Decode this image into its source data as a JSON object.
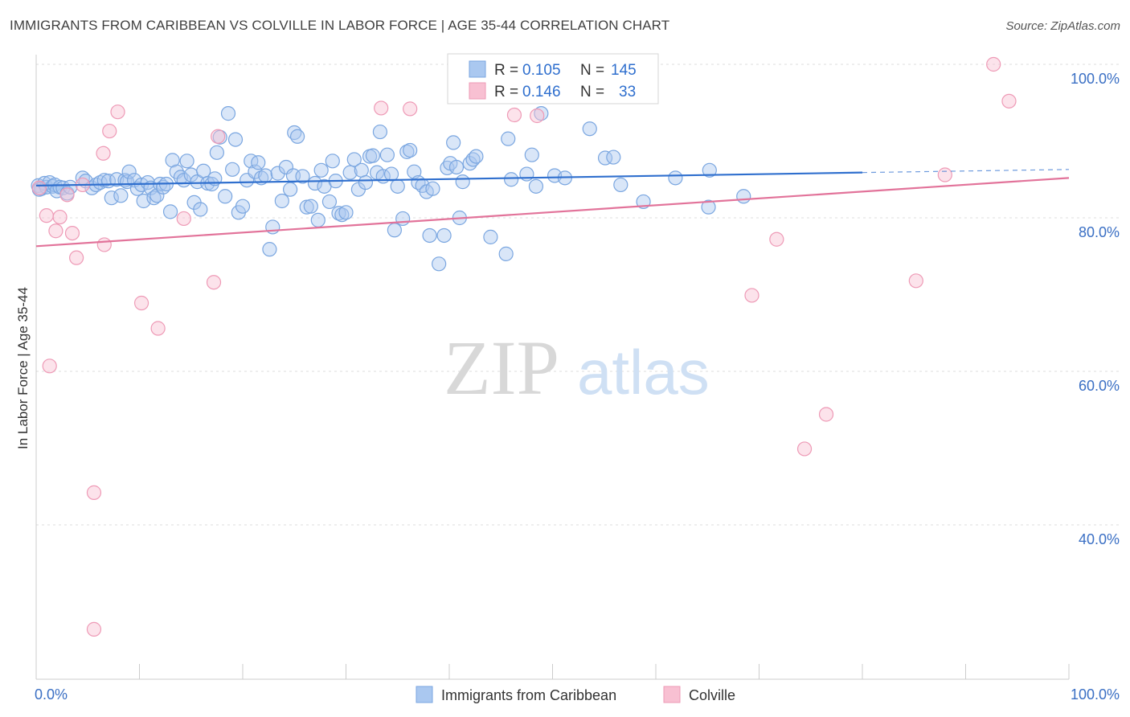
{
  "header": {
    "title": "IMMIGRANTS FROM CARIBBEAN VS COLVILLE IN LABOR FORCE | AGE 35-44 CORRELATION CHART",
    "source": "Source: ZipAtlas.com"
  },
  "watermark": {
    "zip": "ZIP",
    "atlas": "atlas"
  },
  "legend_top": {
    "rows": [
      {
        "r_label": "R =",
        "r_value": "0.105",
        "n_label": "N =",
        "n_value": "145"
      },
      {
        "r_label": "R =",
        "r_value": "0.146",
        "n_label": "N =",
        "n_value": "33"
      }
    ]
  },
  "legend_bottom": {
    "items": [
      "Immigrants from Caribbean",
      "Colville"
    ]
  },
  "colors": {
    "blue_fill": "#aac8f0",
    "blue_stroke": "#7aa6e0",
    "blue_line": "#2f6fce",
    "pink_fill": "#f8c0d2",
    "pink_stroke": "#ee9ab6",
    "pink_line": "#e2739a",
    "tick_text": "#3a6fc4",
    "grid": "#dddddd"
  },
  "chart_data": {
    "type": "scatter",
    "title": "IMMIGRANTS FROM CARIBBEAN VS COLVILLE IN LABOR FORCE | AGE 35-44 CORRELATION CHART",
    "xlabel": "",
    "ylabel": "In Labor Force | Age 35-44",
    "xlim": [
      0,
      100
    ],
    "ylim": [
      20,
      102
    ],
    "x_tick_labels": [
      "0.0%",
      "100.0%"
    ],
    "y_ticks": [
      40,
      60,
      80,
      100
    ],
    "y_tick_labels": [
      "40.0%",
      "60.0%",
      "80.0%",
      "100.0%"
    ],
    "grid": true,
    "legend_position": "top-center",
    "series": [
      {
        "name": "Immigrants from Caribbean",
        "R": 0.105,
        "N": 145,
        "trend": {
          "x0": 0,
          "y0": 84.2,
          "x1": 80,
          "y1": 85.9,
          "dashed_to_x": 100,
          "dashed_to_y": 86.3
        },
        "points": [
          [
            0.2,
            84.2
          ],
          [
            0.5,
            83.8
          ],
          [
            0.8,
            84.5
          ],
          [
            1.0,
            84.0
          ],
          [
            1.3,
            84.6
          ],
          [
            1.6,
            84.1
          ],
          [
            1.8,
            84.3
          ],
          [
            2.0,
            83.5
          ],
          [
            2.3,
            84.0
          ],
          [
            2.6,
            83.9
          ],
          [
            3.0,
            83.2
          ],
          [
            3.3,
            84.0
          ],
          [
            4.5,
            85.2
          ],
          [
            4.8,
            84.8
          ],
          [
            5.4,
            83.9
          ],
          [
            5.8,
            84.3
          ],
          [
            6.2,
            84.6
          ],
          [
            6.6,
            84.9
          ],
          [
            7.0,
            84.8
          ],
          [
            7.3,
            82.6
          ],
          [
            7.8,
            85.0
          ],
          [
            8.2,
            82.9
          ],
          [
            8.6,
            84.9
          ],
          [
            8.8,
            84.7
          ],
          [
            9.0,
            86.0
          ],
          [
            9.5,
            84.9
          ],
          [
            9.8,
            83.8
          ],
          [
            10.2,
            84.3
          ],
          [
            10.4,
            82.2
          ],
          [
            10.8,
            84.6
          ],
          [
            11.1,
            83.9
          ],
          [
            11.4,
            82.6
          ],
          [
            11.7,
            82.9
          ],
          [
            12.0,
            84.4
          ],
          [
            12.3,
            84.0
          ],
          [
            12.6,
            84.4
          ],
          [
            13.0,
            80.8
          ],
          [
            13.2,
            87.5
          ],
          [
            13.6,
            86.0
          ],
          [
            14.0,
            85.3
          ],
          [
            14.3,
            84.9
          ],
          [
            14.6,
            87.4
          ],
          [
            15.0,
            85.6
          ],
          [
            15.3,
            82.0
          ],
          [
            15.6,
            84.7
          ],
          [
            15.9,
            81.1
          ],
          [
            16.2,
            86.1
          ],
          [
            16.6,
            84.5
          ],
          [
            17.0,
            84.4
          ],
          [
            17.3,
            85.1
          ],
          [
            17.5,
            88.5
          ],
          [
            17.8,
            90.5
          ],
          [
            18.3,
            82.8
          ],
          [
            18.6,
            93.6
          ],
          [
            19.0,
            86.3
          ],
          [
            19.3,
            90.2
          ],
          [
            19.6,
            80.7
          ],
          [
            20.0,
            81.5
          ],
          [
            20.4,
            84.9
          ],
          [
            20.8,
            87.4
          ],
          [
            21.2,
            86.0
          ],
          [
            21.5,
            87.2
          ],
          [
            21.8,
            85.2
          ],
          [
            22.2,
            85.5
          ],
          [
            22.6,
            75.9
          ],
          [
            22.9,
            78.8
          ],
          [
            23.4,
            85.8
          ],
          [
            23.8,
            82.2
          ],
          [
            24.2,
            86.6
          ],
          [
            24.6,
            83.7
          ],
          [
            24.9,
            85.5
          ],
          [
            25.0,
            91.1
          ],
          [
            25.3,
            90.6
          ],
          [
            25.8,
            85.4
          ],
          [
            26.2,
            81.4
          ],
          [
            26.6,
            81.5
          ],
          [
            27.0,
            84.5
          ],
          [
            27.3,
            79.7
          ],
          [
            27.6,
            86.2
          ],
          [
            27.9,
            84.1
          ],
          [
            28.4,
            82.1
          ],
          [
            28.7,
            87.4
          ],
          [
            29.0,
            84.8
          ],
          [
            29.3,
            80.6
          ],
          [
            29.6,
            80.4
          ],
          [
            30.0,
            80.7
          ],
          [
            30.4,
            85.9
          ],
          [
            30.8,
            87.6
          ],
          [
            31.2,
            83.7
          ],
          [
            31.5,
            86.2
          ],
          [
            31.9,
            84.6
          ],
          [
            32.3,
            88.0
          ],
          [
            32.6,
            88.1
          ],
          [
            33.0,
            85.9
          ],
          [
            33.3,
            91.2
          ],
          [
            33.6,
            85.4
          ],
          [
            34.0,
            88.2
          ],
          [
            34.4,
            85.7
          ],
          [
            34.7,
            78.4
          ],
          [
            35.0,
            84.1
          ],
          [
            35.5,
            79.9
          ],
          [
            35.9,
            88.6
          ],
          [
            36.2,
            88.8
          ],
          [
            36.6,
            86.0
          ],
          [
            37.0,
            84.6
          ],
          [
            37.4,
            84.2
          ],
          [
            37.8,
            83.4
          ],
          [
            38.1,
            77.7
          ],
          [
            38.4,
            83.8
          ],
          [
            39.0,
            74.0
          ],
          [
            39.5,
            77.7
          ],
          [
            39.8,
            86.5
          ],
          [
            40.1,
            87.1
          ],
          [
            40.4,
            89.8
          ],
          [
            40.7,
            86.6
          ],
          [
            41.0,
            80.0
          ],
          [
            41.3,
            84.7
          ],
          [
            42.0,
            87.1
          ],
          [
            42.3,
            87.6
          ],
          [
            42.6,
            88.0
          ],
          [
            44.0,
            77.5
          ],
          [
            45.5,
            75.3
          ],
          [
            45.7,
            90.3
          ],
          [
            46.0,
            85.0
          ],
          [
            47.5,
            85.7
          ],
          [
            48.0,
            88.2
          ],
          [
            48.4,
            84.1
          ],
          [
            48.9,
            93.6
          ],
          [
            50.2,
            85.5
          ],
          [
            51.2,
            85.2
          ],
          [
            53.6,
            91.6
          ],
          [
            55.1,
            87.8
          ],
          [
            55.9,
            87.9
          ],
          [
            56.6,
            84.3
          ],
          [
            58.8,
            82.1
          ],
          [
            61.9,
            85.2
          ],
          [
            65.1,
            81.4
          ],
          [
            65.2,
            86.2
          ],
          [
            68.5,
            82.8
          ],
          [
            0.3,
            83.7
          ]
        ]
      },
      {
        "name": "Colville",
        "R": 0.146,
        "N": 33,
        "trend": {
          "x0": 0,
          "y0": 76.3,
          "x1": 100,
          "y1": 85.2
        },
        "points": [
          [
            0.3,
            83.9
          ],
          [
            1.0,
            80.3
          ],
          [
            1.3,
            60.7
          ],
          [
            1.9,
            78.3
          ],
          [
            2.3,
            80.1
          ],
          [
            3.0,
            83.0
          ],
          [
            3.5,
            78.0
          ],
          [
            3.9,
            74.8
          ],
          [
            4.5,
            84.3
          ],
          [
            5.6,
            44.2
          ],
          [
            5.6,
            26.4
          ],
          [
            6.5,
            88.4
          ],
          [
            6.6,
            76.5
          ],
          [
            7.1,
            91.3
          ],
          [
            7.9,
            93.8
          ],
          [
            10.2,
            68.9
          ],
          [
            11.8,
            65.6
          ],
          [
            14.3,
            79.9
          ],
          [
            17.2,
            71.6
          ],
          [
            17.6,
            90.6
          ],
          [
            33.4,
            94.3
          ],
          [
            36.2,
            94.2
          ],
          [
            44.4,
            100.0
          ],
          [
            46.3,
            93.4
          ],
          [
            48.5,
            93.3
          ],
          [
            69.3,
            69.9
          ],
          [
            71.7,
            77.2
          ],
          [
            74.4,
            49.9
          ],
          [
            76.5,
            54.4
          ],
          [
            85.2,
            71.8
          ],
          [
            92.7,
            100.0
          ],
          [
            94.2,
            95.2
          ],
          [
            88.0,
            85.6
          ]
        ]
      }
    ]
  }
}
